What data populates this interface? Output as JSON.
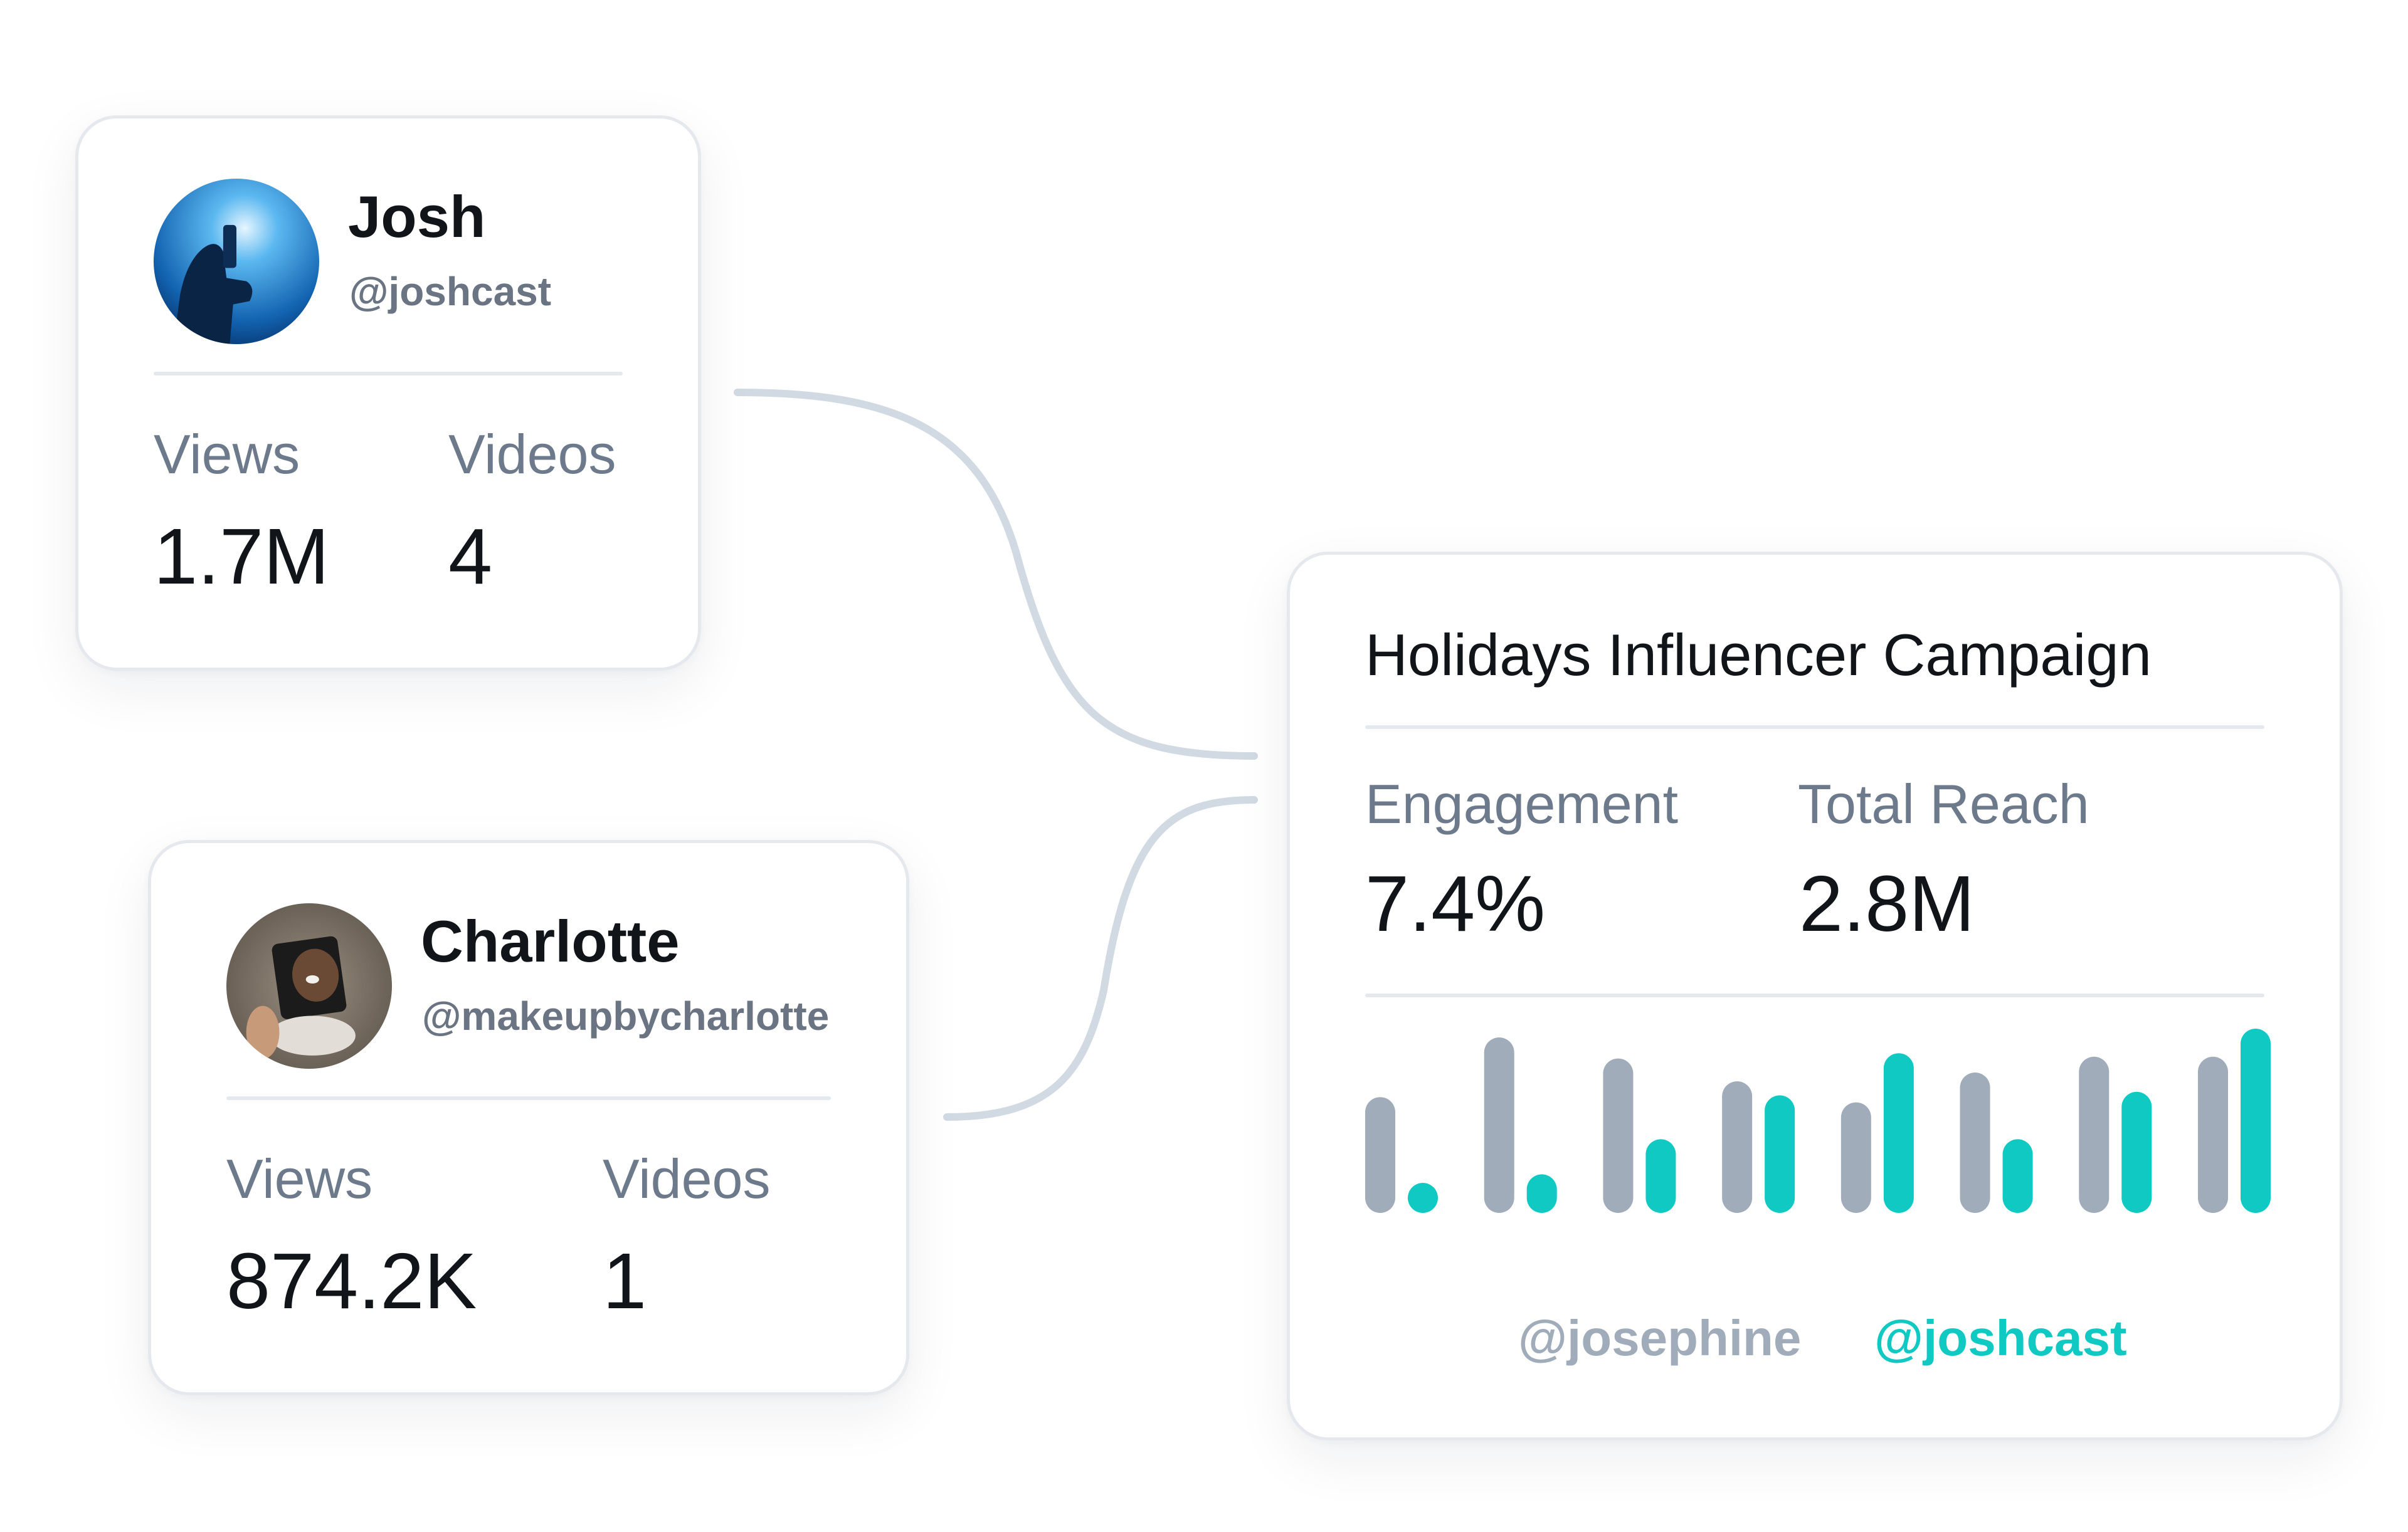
{
  "colors": {
    "primary_series": "#a1acbb",
    "secondary_series": "#10c9c3",
    "connector": "#d1d9e2",
    "label": "#6d7a8c",
    "handle": "#6b7482"
  },
  "influencers": [
    {
      "name": "Josh",
      "handle": "@joshcast",
      "avatar_icon": "avatar-photo-josh",
      "views_label": "Views",
      "views_value": "1.7M",
      "videos_label": "Videos",
      "videos_value": "4"
    },
    {
      "name": "Charlotte",
      "handle": "@makeupbycharlotte",
      "avatar_icon": "avatar-photo-charlotte",
      "views_label": "Views",
      "views_value": "874.2K",
      "videos_label": "Videos",
      "videos_value": "1"
    }
  ],
  "campaign": {
    "title": "Holidays Influencer Campaign",
    "engagement_label": "Engagement",
    "engagement_value": "7.4%",
    "reach_label": "Total Reach",
    "reach_value": "2.8M"
  },
  "chart_data": {
    "type": "bar",
    "ylim": [
      0,
      100
    ],
    "grid": false,
    "legend_position": "bottom",
    "series": [
      {
        "name": "@josephine",
        "color": "#a1acbb",
        "values": [
          66,
          100,
          88,
          75,
          63,
          80,
          89,
          89
        ]
      },
      {
        "name": "@joshcast",
        "color": "#10c9c3",
        "values": [
          13,
          22,
          42,
          67,
          91,
          42,
          69,
          105
        ]
      }
    ]
  }
}
